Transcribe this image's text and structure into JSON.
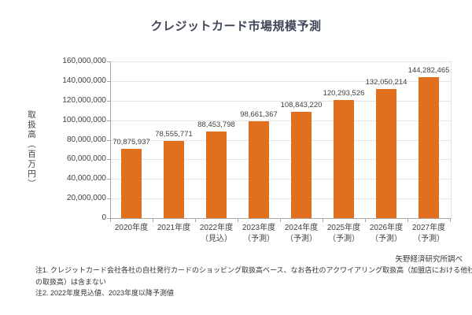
{
  "chart_data": {
    "type": "bar",
    "title": "クレジットカード市場規模予測",
    "ylabel": "取扱高（百万円）",
    "xlabel": "",
    "categories": [
      "2020年度",
      "2021年度",
      "2022年度",
      "2023年度",
      "2024年度",
      "2025年度",
      "2026年度",
      "2027年度"
    ],
    "category_notes": [
      "",
      "",
      "（見込）",
      "（予測）",
      "（予測）",
      "（予測）",
      "（予測）",
      "（予測）"
    ],
    "values": [
      70875937,
      78555771,
      88453798,
      98661367,
      108843220,
      120293526,
      132050214,
      144282465
    ],
    "value_labels": [
      "70,875,937",
      "78,555,771",
      "88,453,798",
      "98,661,367",
      "108,843,220",
      "120,293,526",
      "132,050,214",
      "144,282,465"
    ],
    "ylim": [
      0,
      160000000
    ],
    "ytick_step": 20000000,
    "ytick_labels": [
      "0",
      "20,000,000",
      "40,000,000",
      "60,000,000",
      "80,000,000",
      "100,000,000",
      "120,000,000",
      "140,000,000",
      "160,000,000"
    ],
    "grid": true,
    "legend": false
  },
  "source": "矢野経済研究所調べ",
  "notes": [
    "注1. クレジットカード会社各社の自社発行カードのショッピング取扱高ベース、なお各社のアクワイアリング取扱高（加盟店における他社カード",
    "の取扱高）は含まない",
    "注2. 2022年度見込値、2023年度以降予測値"
  ],
  "colors": {
    "bar": "#e0701e",
    "grid": "#e4e4e4",
    "axis": "#a6a6a6",
    "title_text": "#3f4657",
    "text": "#404040",
    "note_text": "#333333"
  }
}
